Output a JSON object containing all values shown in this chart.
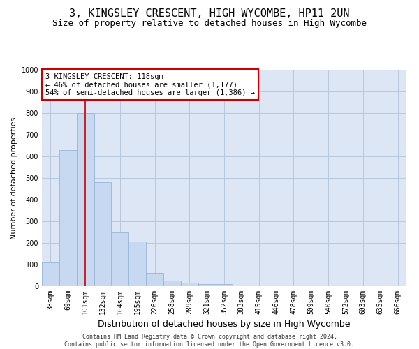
{
  "title": "3, KINGSLEY CRESCENT, HIGH WYCOMBE, HP11 2UN",
  "subtitle": "Size of property relative to detached houses in High Wycombe",
  "xlabel": "Distribution of detached houses by size in High Wycombe",
  "ylabel": "Number of detached properties",
  "footer_line1": "Contains HM Land Registry data © Crown copyright and database right 2024.",
  "footer_line2": "Contains public sector information licensed under the Open Government Licence v3.0.",
  "categories": [
    "38sqm",
    "69sqm",
    "101sqm",
    "132sqm",
    "164sqm",
    "195sqm",
    "226sqm",
    "258sqm",
    "289sqm",
    "321sqm",
    "352sqm",
    "383sqm",
    "415sqm",
    "446sqm",
    "478sqm",
    "509sqm",
    "540sqm",
    "572sqm",
    "603sqm",
    "635sqm",
    "666sqm"
  ],
  "values": [
    110,
    630,
    800,
    480,
    250,
    205,
    60,
    25,
    17,
    10,
    10,
    0,
    0,
    0,
    0,
    0,
    0,
    0,
    0,
    0,
    0
  ],
  "bar_color": "#c6d9f1",
  "bar_edge_color": "#9ab5d9",
  "property_line_x": 2,
  "property_line_color": "#cc0000",
  "annotation_line1": "3 KINGSLEY CRESCENT: 118sqm",
  "annotation_line2": "← 46% of detached houses are smaller (1,177)",
  "annotation_line3": "54% of semi-detached houses are larger (1,386) →",
  "annotation_box_color": "#ffffff",
  "annotation_box_edge_color": "#cc0000",
  "ylim": [
    0,
    1000
  ],
  "yticks": [
    0,
    100,
    200,
    300,
    400,
    500,
    600,
    700,
    800,
    900,
    1000
  ],
  "grid_color": "#b8c8dc",
  "background_color": "#dce6f5",
  "title_fontsize": 11,
  "subtitle_fontsize": 9,
  "ylabel_fontsize": 8,
  "xlabel_fontsize": 9,
  "tick_fontsize": 7,
  "annotation_fontsize": 7.5,
  "footer_fontsize": 6
}
